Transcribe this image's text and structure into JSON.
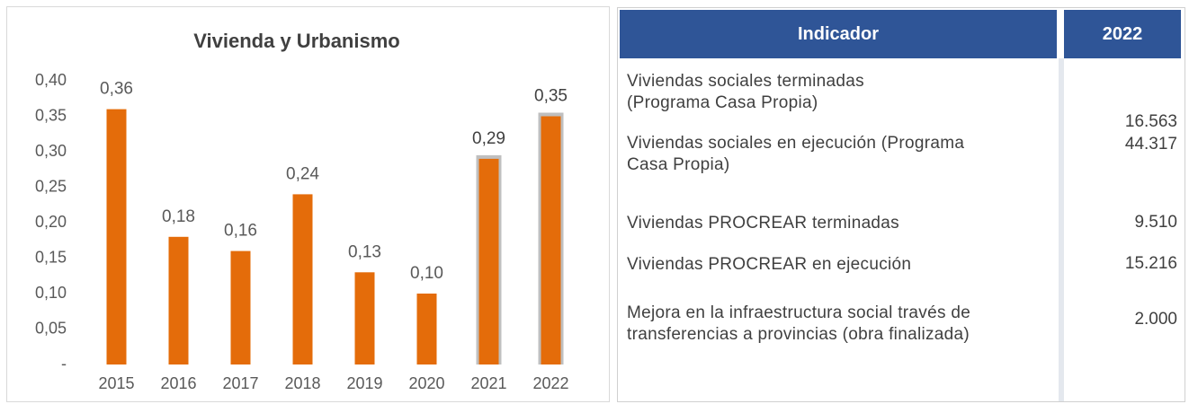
{
  "chart_data": {
    "type": "bar",
    "title": "Vivienda y Urbanismo",
    "categories": [
      "2015",
      "2016",
      "2017",
      "2018",
      "2019",
      "2020",
      "2021",
      "2022"
    ],
    "values": [
      0.36,
      0.18,
      0.16,
      0.24,
      0.13,
      0.1,
      0.29,
      0.35
    ],
    "value_labels": [
      "0,36",
      "0,18",
      "0,16",
      "0,24",
      "0,13",
      "0,10",
      "0,29",
      "0,35"
    ],
    "color": "#e46c0a",
    "highlight_color": "#bfbfbf",
    "highlighted": [
      false,
      false,
      false,
      false,
      false,
      false,
      true,
      true
    ],
    "ylim": [
      0,
      0.4
    ],
    "yticks": [
      {
        "value": 0,
        "label": "-"
      },
      {
        "value": 0.05,
        "label": "0,05"
      },
      {
        "value": 0.1,
        "label": "0,10"
      },
      {
        "value": 0.15,
        "label": "0,15"
      },
      {
        "value": 0.2,
        "label": "0,20"
      },
      {
        "value": 0.25,
        "label": "0,25"
      },
      {
        "value": 0.3,
        "label": "0,30"
      },
      {
        "value": 0.35,
        "label": "0,35"
      },
      {
        "value": 0.4,
        "label": "0,40"
      }
    ],
    "grid": false
  },
  "table": {
    "header": [
      "Indicador",
      "2022"
    ],
    "rows": [
      {
        "text": [
          "Viviendas sociales terminadas",
          "(Programa Casa Propia)"
        ],
        "value": "16.563"
      },
      {
        "text": [
          "Viviendas sociales en ejecución (Programa",
          "Casa Propia)"
        ],
        "value": "44.317"
      },
      {
        "text": [
          "Viviendas PROCREAR terminadas"
        ],
        "value": "9.510"
      },
      {
        "text": [
          "Viviendas PROCREAR en ejecución"
        ],
        "value": "15.216"
      },
      {
        "text": [
          "Mejora en la infraestructura social través de",
          "transferencias a provincias (obra finalizada)"
        ],
        "value": "2.000"
      }
    ]
  }
}
